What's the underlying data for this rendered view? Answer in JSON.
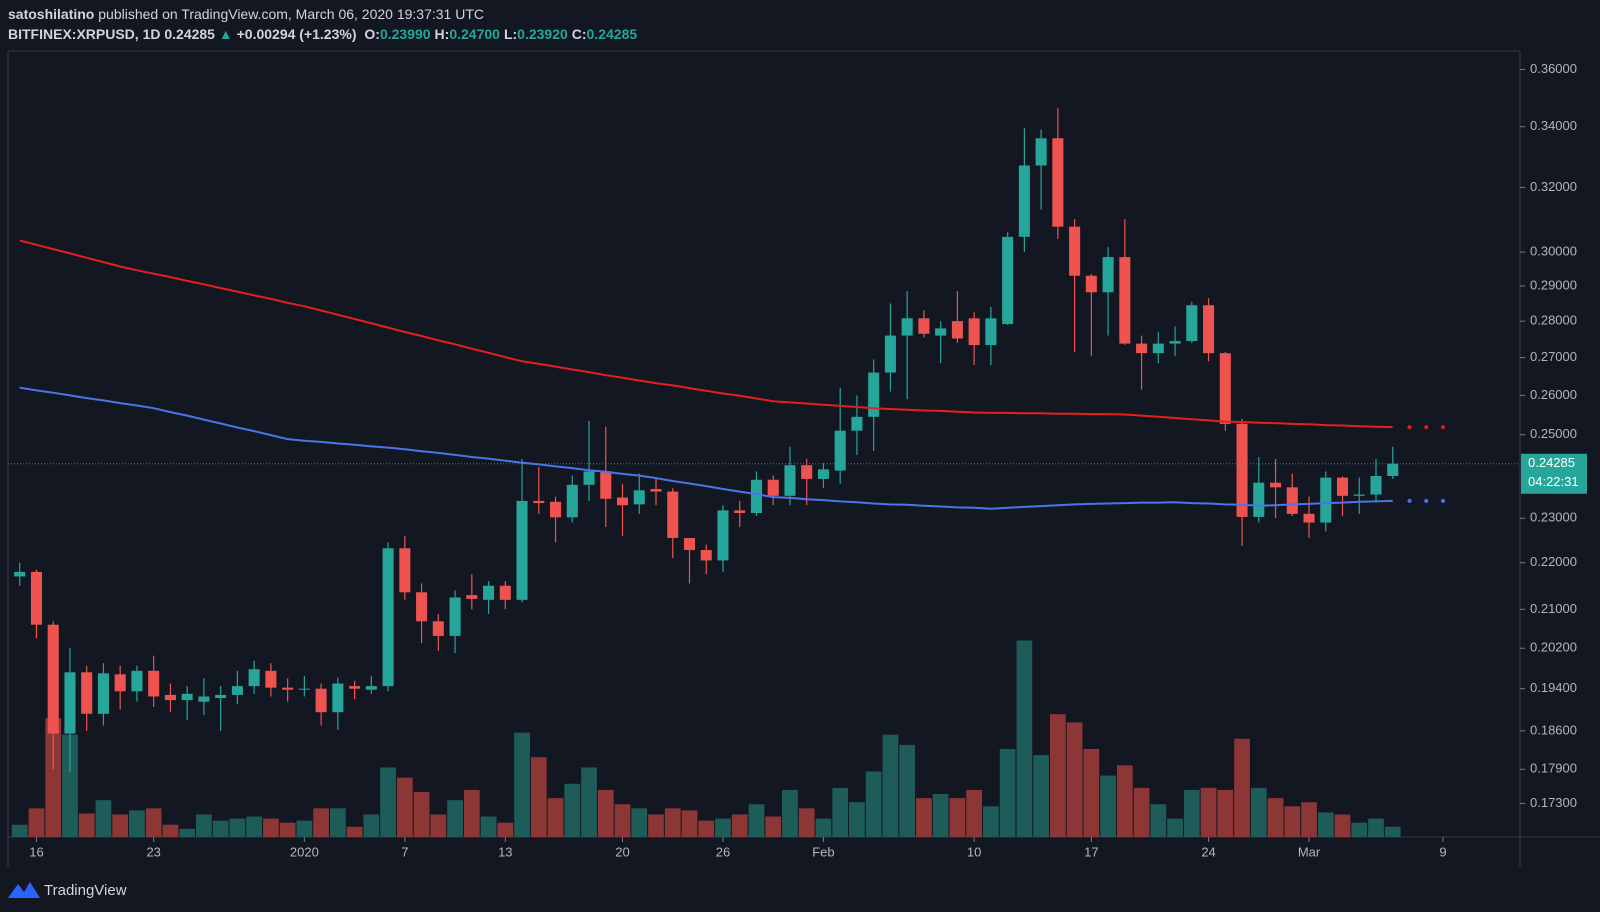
{
  "header": {
    "author": "satoshilatino",
    "published": "published on TradingView.com, March 06, 2020 19:37:31 UTC",
    "symbol": "BITFINEX:XRPUSD, 1D",
    "last": "0.24285",
    "arrow": "▲",
    "change": "+0.00294 (+1.23%)",
    "ohlc": [
      {
        "key": "O:",
        "value": "0.23990"
      },
      {
        "key": "H:",
        "value": "0.24700"
      },
      {
        "key": "L:",
        "value": "0.23920"
      },
      {
        "key": "C:",
        "value": "0.24285"
      }
    ]
  },
  "footer": {
    "brand": "TradingView"
  },
  "chart_data": {
    "type": "candlestick",
    "log_scale": true,
    "grid": false,
    "up_color": "#26a69a",
    "down_color": "#ef5350",
    "volume_up_color": "#1e5c59",
    "volume_down_color": "#8c3636",
    "xlim": [
      -0.7,
      89.6
    ],
    "xticks": [
      {
        "value": 1,
        "label": "16"
      },
      {
        "value": 8,
        "label": "23"
      },
      {
        "value": 17,
        "label": "2020"
      },
      {
        "value": 23,
        "label": "7"
      },
      {
        "value": 29,
        "label": "13"
      },
      {
        "value": 36,
        "label": "20"
      },
      {
        "value": 42,
        "label": "26"
      },
      {
        "value": 48,
        "label": "Feb"
      },
      {
        "value": 57,
        "label": "10"
      },
      {
        "value": 64,
        "label": "17"
      },
      {
        "value": 71,
        "label": "24"
      },
      {
        "value": 77,
        "label": "Mar"
      },
      {
        "value": 85,
        "label": "9"
      }
    ],
    "ylim": [
      0.1673,
      0.3667
    ],
    "yticks": [
      {
        "value": 0.36,
        "label": "0.36000"
      },
      {
        "value": 0.34,
        "label": "0.34000"
      },
      {
        "value": 0.32,
        "label": "0.32000"
      },
      {
        "value": 0.3,
        "label": "0.30000"
      },
      {
        "value": 0.29,
        "label": "0.29000"
      },
      {
        "value": 0.28,
        "label": "0.28000"
      },
      {
        "value": 0.27,
        "label": "0.27000"
      },
      {
        "value": 0.26,
        "label": "0.26000"
      },
      {
        "value": 0.25,
        "label": "0.25000"
      },
      {
        "value": 0.23,
        "label": "0.23000"
      },
      {
        "value": 0.22,
        "label": "0.22000"
      },
      {
        "value": 0.21,
        "label": "0.21000"
      },
      {
        "value": 0.202,
        "label": "0.20200"
      },
      {
        "value": 0.194,
        "label": "0.19400"
      },
      {
        "value": 0.186,
        "label": "0.18600"
      },
      {
        "value": 0.179,
        "label": "0.17900"
      },
      {
        "value": 0.173,
        "label": "0.17300"
      }
    ],
    "last_label": "0.24285",
    "countdown": "04:22:31",
    "open": [
      0.217,
      0.218,
      0.2068,
      0.1855,
      0.1972,
      0.1892,
      0.1968,
      0.1935,
      0.1975,
      0.1928,
      0.1918,
      0.1915,
      0.1922,
      0.1928,
      0.1945,
      0.1975,
      0.1942,
      0.1938,
      0.194,
      0.1895,
      0.1945,
      0.1938,
      0.1945,
      0.2232,
      0.2136,
      0.2075,
      0.2045,
      0.213,
      0.212,
      0.215,
      0.212,
      0.234,
      0.2338,
      0.2302,
      0.2378,
      0.241,
      0.2348,
      0.2332,
      0.2368,
      0.2362,
      0.2255,
      0.2228,
      0.2205,
      0.2318,
      0.2312,
      0.239,
      0.2352,
      0.2425,
      0.2392,
      0.2412,
      0.251,
      0.2545,
      0.266,
      0.276,
      0.2808,
      0.276,
      0.28,
      0.2808,
      0.2734,
      0.2792,
      0.3046,
      0.3271,
      0.3361,
      0.3077,
      0.293,
      0.2882,
      0.2985,
      0.2738,
      0.2712,
      0.2738,
      0.2745,
      0.2845,
      0.2712,
      0.2527,
      0.2303,
      0.2383,
      0.2372,
      0.231,
      0.229,
      0.2395,
      0.2352,
      0.2355,
      0.2399
    ],
    "high": [
      0.22,
      0.2185,
      0.2075,
      0.202,
      0.1985,
      0.199,
      0.1985,
      0.1985,
      0.2005,
      0.195,
      0.1945,
      0.196,
      0.1945,
      0.1975,
      0.1995,
      0.199,
      0.196,
      0.1965,
      0.195,
      0.1962,
      0.1955,
      0.1965,
      0.2245,
      0.226,
      0.2155,
      0.209,
      0.214,
      0.2175,
      0.216,
      0.216,
      0.244,
      0.242,
      0.235,
      0.24,
      0.2535,
      0.252,
      0.238,
      0.2405,
      0.2395,
      0.237,
      0.2245,
      0.224,
      0.233,
      0.234,
      0.241,
      0.24,
      0.247,
      0.244,
      0.243,
      0.262,
      0.26,
      0.2695,
      0.285,
      0.2885,
      0.283,
      0.28,
      0.2885,
      0.2825,
      0.284,
      0.306,
      0.3395,
      0.339,
      0.3465,
      0.31,
      0.2935,
      0.3015,
      0.31,
      0.276,
      0.277,
      0.2785,
      0.2855,
      0.2865,
      0.2715,
      0.254,
      0.2445,
      0.244,
      0.2405,
      0.235,
      0.241,
      0.2398,
      0.2395,
      0.244,
      0.247
    ],
    "low": [
      0.215,
      0.204,
      0.179,
      0.1785,
      0.186,
      0.187,
      0.19,
      0.1915,
      0.1905,
      0.1895,
      0.188,
      0.189,
      0.186,
      0.191,
      0.193,
      0.1925,
      0.1915,
      0.1925,
      0.187,
      0.1862,
      0.192,
      0.193,
      0.1935,
      0.212,
      0.203,
      0.2015,
      0.201,
      0.21,
      0.209,
      0.21,
      0.2115,
      0.231,
      0.2245,
      0.229,
      0.234,
      0.228,
      0.226,
      0.231,
      0.233,
      0.221,
      0.2155,
      0.2175,
      0.218,
      0.228,
      0.2305,
      0.233,
      0.233,
      0.233,
      0.237,
      0.238,
      0.245,
      0.246,
      0.261,
      0.259,
      0.2755,
      0.2685,
      0.274,
      0.268,
      0.268,
      0.279,
      0.3,
      0.313,
      0.304,
      0.2715,
      0.2705,
      0.276,
      0.2735,
      0.2615,
      0.2685,
      0.2705,
      0.274,
      0.269,
      0.251,
      0.2237,
      0.229,
      0.23,
      0.2305,
      0.2255,
      0.227,
      0.2305,
      0.231,
      0.234,
      0.2392
    ],
    "close": [
      0.218,
      0.2068,
      0.1855,
      0.1972,
      0.1892,
      0.197,
      0.1935,
      0.1975,
      0.1925,
      0.1918,
      0.193,
      0.1925,
      0.1928,
      0.1945,
      0.1978,
      0.1942,
      0.1938,
      0.194,
      0.1895,
      0.195,
      0.194,
      0.1945,
      0.2232,
      0.2136,
      0.2075,
      0.2045,
      0.2125,
      0.2122,
      0.215,
      0.212,
      0.234,
      0.2335,
      0.2302,
      0.2378,
      0.241,
      0.2345,
      0.233,
      0.2365,
      0.2362,
      0.2255,
      0.2228,
      0.2205,
      0.2318,
      0.2312,
      0.239,
      0.2352,
      0.2425,
      0.2392,
      0.2415,
      0.251,
      0.2545,
      0.266,
      0.276,
      0.2808,
      0.2765,
      0.278,
      0.2752,
      0.2734,
      0.2808,
      0.3046,
      0.3271,
      0.3361,
      0.3077,
      0.293,
      0.2882,
      0.2985,
      0.2738,
      0.2712,
      0.2738,
      0.2745,
      0.2845,
      0.2712,
      0.2527,
      0.2303,
      0.2383,
      0.2372,
      0.231,
      0.229,
      0.2395,
      0.2352,
      0.2355,
      0.2399,
      0.24285
    ],
    "volume": [
      12,
      28,
      116,
      100,
      23,
      36,
      22,
      26,
      28,
      12,
      8,
      22,
      16,
      18,
      20,
      18,
      14,
      16,
      28,
      28,
      10,
      22,
      68,
      58,
      44,
      22,
      36,
      46,
      20,
      14,
      102,
      78,
      38,
      52,
      68,
      46,
      32,
      28,
      22,
      28,
      26,
      16,
      18,
      22,
      32,
      20,
      46,
      28,
      18,
      48,
      34,
      64,
      100,
      90,
      38,
      42,
      38,
      46,
      30,
      86,
      192,
      80,
      120,
      112,
      86,
      60,
      70,
      48,
      32,
      18,
      46,
      48,
      46,
      96,
      48,
      38,
      30,
      34,
      24,
      22,
      14,
      18,
      10
    ],
    "series": [
      {
        "color": "#e3201f",
        "values": [
          0.3035,
          0.3022,
          0.3009,
          0.2996,
          0.2983,
          0.297,
          0.2957,
          0.2946,
          0.2936,
          0.2926,
          0.2915,
          0.2905,
          0.2894,
          0.2884,
          0.2873,
          0.2863,
          0.2852,
          0.2842,
          0.283,
          0.2818,
          0.2806,
          0.2794,
          0.2782,
          0.277,
          0.2759,
          0.2747,
          0.2736,
          0.2724,
          0.2713,
          0.2701,
          0.269,
          0.2683,
          0.2676,
          0.2668,
          0.2661,
          0.2653,
          0.2646,
          0.2639,
          0.2632,
          0.2626,
          0.2619,
          0.2612,
          0.2605,
          0.2599,
          0.2592,
          0.2585,
          0.2582,
          0.2579,
          0.2576,
          0.2573,
          0.257,
          0.2567,
          0.2565,
          0.2563,
          0.2561,
          0.256,
          0.2558,
          0.2556,
          0.2555,
          0.2555,
          0.2554,
          0.2554,
          0.2553,
          0.2553,
          0.2552,
          0.2552,
          0.2551,
          0.2548,
          0.2545,
          0.2542,
          0.2539,
          0.2536,
          0.2533,
          0.2532,
          0.253,
          0.2529,
          0.2527,
          0.2526,
          0.2524,
          0.2523,
          0.2521,
          0.252,
          0.2519
        ]
      },
      {
        "color": "#4a74e8",
        "values": [
          0.262,
          0.2613,
          0.2607,
          0.26,
          0.2593,
          0.2587,
          0.258,
          0.2574,
          0.2567,
          0.2557,
          0.2548,
          0.2538,
          0.2528,
          0.2518,
          0.2509,
          0.2499,
          0.2489,
          0.2485,
          0.2482,
          0.2478,
          0.2475,
          0.2471,
          0.2468,
          0.2464,
          0.2459,
          0.2455,
          0.245,
          0.2445,
          0.2441,
          0.2436,
          0.2431,
          0.2427,
          0.2422,
          0.2418,
          0.2413,
          0.2409,
          0.2404,
          0.24,
          0.2394,
          0.2387,
          0.2381,
          0.2375,
          0.2368,
          0.2362,
          0.2356,
          0.2349,
          0.2347,
          0.2344,
          0.2342,
          0.2339,
          0.2337,
          0.2334,
          0.2332,
          0.2331,
          0.2329,
          0.2327,
          0.2325,
          0.2324,
          0.2322,
          0.2324,
          0.2326,
          0.2328,
          0.233,
          0.2332,
          0.2333,
          0.2334,
          0.2335,
          0.2336,
          0.2336,
          0.2337,
          0.2335,
          0.2334,
          0.2332,
          0.2331,
          0.2329,
          0.233,
          0.2332,
          0.2333,
          0.2335,
          0.2336,
          0.2338,
          0.2339,
          0.234
        ]
      }
    ]
  }
}
